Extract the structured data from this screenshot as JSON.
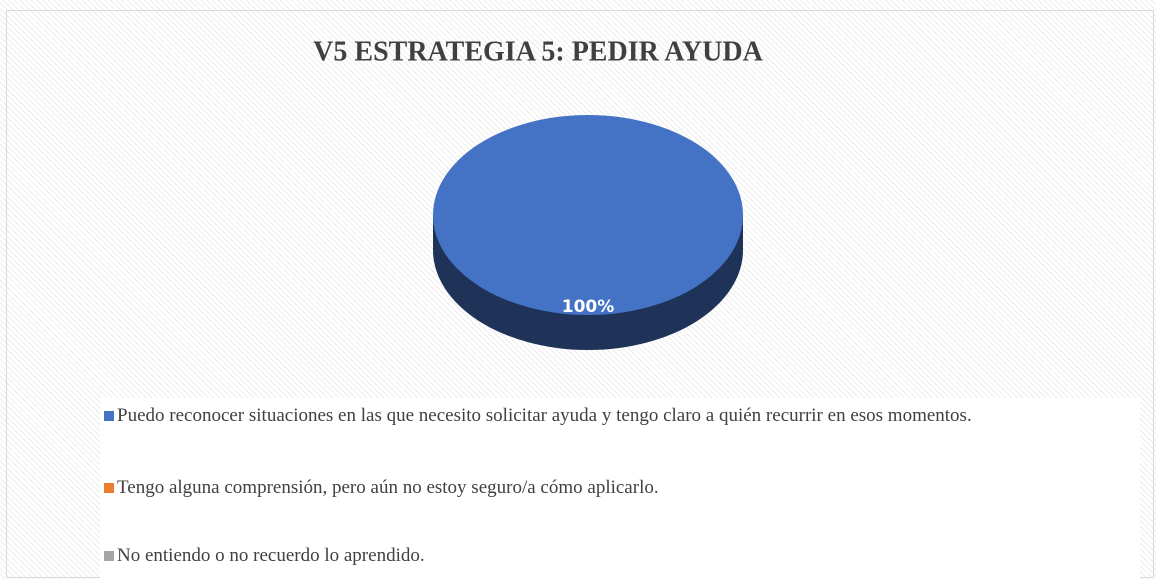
{
  "chart_data": {
    "type": "pie",
    "title": "V5 ESTRATEGIA 5: PEDIR AYUDA",
    "categories": [
      "Puedo reconocer situaciones en las que necesito solicitar ayuda y tengo claro a quién recurrir en esos momentos.",
      "Tengo alguna comprensión, pero aún no estoy seguro/a cómo aplicarlo.",
      "No entiendo o no recuerdo lo aprendido."
    ],
    "values": [
      100,
      0,
      0
    ],
    "value_labels": [
      "100%",
      null,
      null
    ],
    "colors": [
      "#4472c4",
      "#ed7d31",
      "#a5a5a5"
    ],
    "legend": "bottom"
  }
}
